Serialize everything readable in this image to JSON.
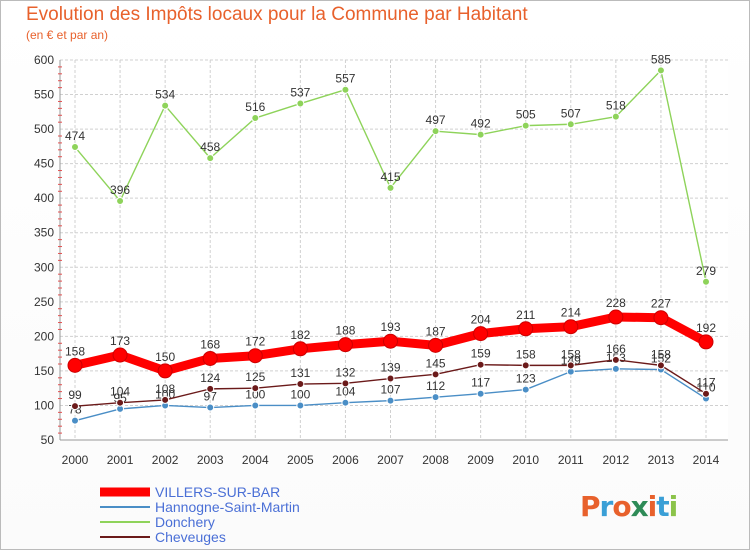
{
  "title": "Evolution des Impôts locaux pour la Commune par Habitant",
  "subtitle": "(en € et par an)",
  "logo": {
    "text": "Proxiti",
    "letter_colors": [
      "#e8612c",
      "#3a9fd6",
      "#e8612c",
      "#2e8b57",
      "#e8612c",
      "#3a9fd6",
      "#8bc34a"
    ]
  },
  "chart_data": {
    "type": "line",
    "x": [
      2000,
      2001,
      2002,
      2003,
      2004,
      2005,
      2006,
      2007,
      2008,
      2009,
      2010,
      2011,
      2012,
      2013,
      2014
    ],
    "ylim": [
      50,
      600
    ],
    "yticks": [
      50,
      100,
      150,
      200,
      250,
      300,
      350,
      400,
      450,
      500,
      550,
      600
    ],
    "grid": true,
    "legend_position": "bottom-left",
    "series": [
      {
        "name": "VILLERS-SUR-BAR",
        "color": "#ff0000",
        "values": [
          158,
          173,
          150,
          168,
          172,
          182,
          188,
          193,
          187,
          204,
          211,
          214,
          228,
          227,
          192
        ]
      },
      {
        "name": "Hannogne-Saint-Martin",
        "color": "#4a8ec6",
        "values": [
          78,
          95,
          100,
          97,
          100,
          100,
          104,
          107,
          112,
          117,
          123,
          149,
          153,
          152,
          110
        ]
      },
      {
        "name": "Donchery",
        "color": "#8ed35a",
        "values": [
          474,
          396,
          534,
          458,
          516,
          537,
          557,
          415,
          497,
          492,
          505,
          507,
          518,
          585,
          279
        ]
      },
      {
        "name": "Cheveuges",
        "color": "#6b1a1a",
        "values": [
          99,
          104,
          108,
          124,
          125,
          131,
          132,
          139,
          145,
          159,
          158,
          158,
          166,
          158,
          117
        ]
      }
    ]
  }
}
